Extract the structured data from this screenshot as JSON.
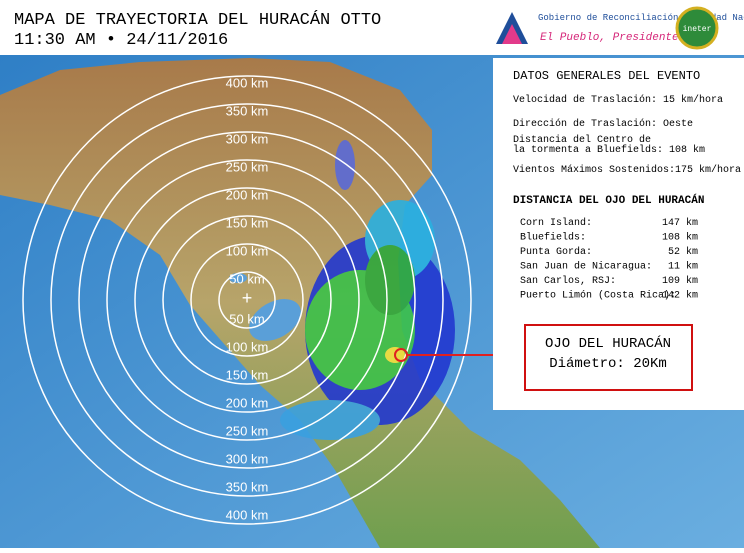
{
  "header": {
    "title": "MAPA DE TRAYECTORIA DEL HURACÁN OTTO",
    "datetime": "11:30 AM • 24/11/2016",
    "gov_name": "Gobierno de Reconciliación y Unidad Nacional",
    "slogan": "El Pueblo, Presidente!",
    "agency": "ineter"
  },
  "rings": {
    "labels_up": [
      "50 km",
      "100 km",
      "150 km",
      "200 km",
      "250 km",
      "300 km",
      "350 km",
      "400 km"
    ],
    "labels_down": [
      "50 km",
      "100 km",
      "150 km",
      "200 km",
      "250 km",
      "300 km",
      "350 km",
      "400 km"
    ]
  },
  "panel": {
    "title": "DATOS GENERALES DEL EVENTO",
    "items": [
      "Velocidad de Traslación: 15 km/hora",
      "Dirección de Traslación: Oeste",
      "Distancia del Centro de la tormenta a Bluefields: 108 km",
      "Vientos Máximos Sostenidos:175 km/hora"
    ],
    "distance_title": "DISTANCIA DEL OJO DEL HURACÁN",
    "distances": [
      [
        "Corn Island:",
        "147 km"
      ],
      [
        "Bluefields:",
        "108 km"
      ],
      [
        "Punta Gorda:",
        "52 km"
      ],
      [
        "San Juan de Nicaragua:",
        "11 km"
      ],
      [
        "San Carlos, RSJ:",
        "109 km"
      ],
      [
        "Puerto Limón (Costa Rica):",
        "142 km"
      ]
    ]
  },
  "eye_box": {
    "line1": "OJO DEL HURACÁN",
    "line2": "Diámetro: 20Km"
  }
}
